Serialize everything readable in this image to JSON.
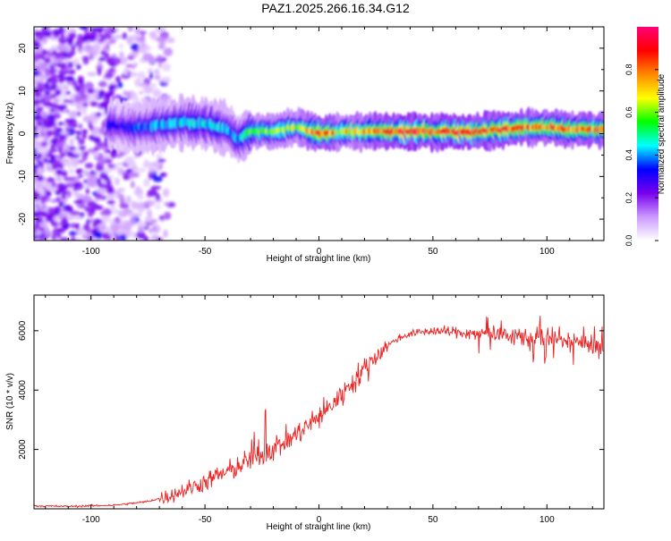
{
  "title": "PAZ1.2025.266.16.34.G12",
  "chart_data": [
    {
      "type": "heatmap",
      "xlabel": "Height of straight line (km)",
      "ylabel": "Frequency (Hz)",
      "xlim": [
        -125,
        125
      ],
      "ylim": [
        -25,
        25
      ],
      "xticks": [
        -100,
        -50,
        0,
        50,
        100
      ],
      "yticks": [
        -20,
        -10,
        0,
        10,
        20
      ],
      "colorbar": {
        "label": "Normalized spectral amplitude",
        "range": [
          0,
          1
        ],
        "ticks": [
          0.0,
          0.2,
          0.4,
          0.6,
          0.8
        ],
        "colormap": [
          "#ffffff",
          "#cc99ff",
          "#7700ee",
          "#0000ff",
          "#00ffff",
          "#00ff00",
          "#ffff00",
          "#ff8800",
          "#ff0000",
          "#ff0077"
        ]
      },
      "ridge": [
        {
          "x": -90,
          "y": 2.0,
          "amp": 0.3
        },
        {
          "x": -80,
          "y": 1.5,
          "amp": 0.35
        },
        {
          "x": -70,
          "y": 2.0,
          "amp": 0.4
        },
        {
          "x": -60,
          "y": 2.5,
          "amp": 0.45
        },
        {
          "x": -50,
          "y": 2.5,
          "amp": 0.45
        },
        {
          "x": -40,
          "y": 1.0,
          "amp": 0.4
        },
        {
          "x": -35,
          "y": -1.5,
          "amp": 0.4
        },
        {
          "x": -30,
          "y": 0.5,
          "amp": 0.55
        },
        {
          "x": -20,
          "y": 0.5,
          "amp": 0.6
        },
        {
          "x": -10,
          "y": 1.5,
          "amp": 0.6
        },
        {
          "x": 0,
          "y": 0.0,
          "amp": 0.85
        },
        {
          "x": 10,
          "y": 0.5,
          "amp": 0.7
        },
        {
          "x": 20,
          "y": 0.5,
          "amp": 0.75
        },
        {
          "x": 30,
          "y": 0.5,
          "amp": 0.8
        },
        {
          "x": 40,
          "y": 0.5,
          "amp": 0.9
        },
        {
          "x": 50,
          "y": 0.5,
          "amp": 0.85
        },
        {
          "x": 60,
          "y": 0.5,
          "amp": 0.85
        },
        {
          "x": 70,
          "y": 0.5,
          "amp": 0.85
        },
        {
          "x": 80,
          "y": 1.0,
          "amp": 0.85
        },
        {
          "x": 90,
          "y": 1.5,
          "amp": 0.8
        },
        {
          "x": 100,
          "y": 1.5,
          "amp": 0.8
        },
        {
          "x": 110,
          "y": 1.0,
          "amp": 0.8
        },
        {
          "x": 120,
          "y": 1.0,
          "amp": 0.75
        }
      ]
    },
    {
      "type": "line",
      "xlabel": "Height of straight line (km)",
      "ylabel": "SNR (10 * v/v)",
      "xlim": [
        -125,
        125
      ],
      "ylim": [
        0,
        7200
      ],
      "xticks": [
        -100,
        -50,
        0,
        50,
        100
      ],
      "yticks": [
        2000,
        4000,
        6000
      ],
      "color": "#ee2222",
      "x": [
        -125,
        -110,
        -100,
        -90,
        -80,
        -75,
        -70,
        -65,
        -60,
        -55,
        -50,
        -45,
        -40,
        -35,
        -30,
        -25,
        -20,
        -15,
        -10,
        -5,
        0,
        5,
        10,
        15,
        20,
        25,
        30,
        35,
        40,
        50,
        60,
        70,
        80,
        90,
        100,
        110,
        120,
        125
      ],
      "y": [
        100,
        80,
        100,
        120,
        200,
        250,
        350,
        450,
        600,
        750,
        900,
        1100,
        1250,
        1450,
        1650,
        1850,
        2050,
        2250,
        2500,
        2800,
        3100,
        3450,
        3850,
        4300,
        4700,
        5150,
        5500,
        5750,
        5900,
        6000,
        5950,
        5900,
        5900,
        5800,
        5750,
        5650,
        5600,
        5300
      ]
    }
  ]
}
